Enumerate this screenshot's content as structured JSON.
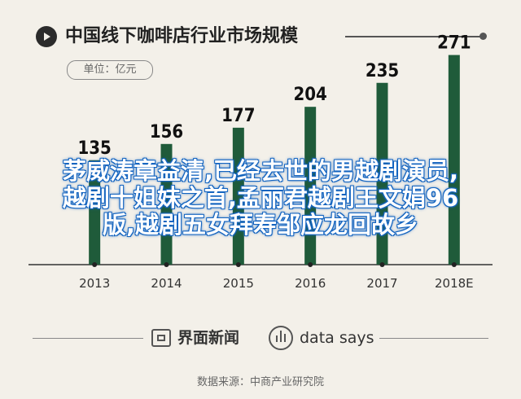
{
  "header": {
    "title": "中国线下咖啡店行业市场规模",
    "unit": "单位：亿元"
  },
  "chart_data": {
    "type": "bar",
    "categories": [
      "2013",
      "2014",
      "2015",
      "2016",
      "2017",
      "2018E"
    ],
    "values": [
      135,
      156,
      177,
      204,
      235,
      271
    ],
    "ylim": [
      0,
      300
    ],
    "color": "#1f5b3a"
  },
  "overlay": {
    "lines": [
      "茅威涛章益清,已经去世的男越剧演员,",
      "越剧十姐妹之首,孟丽君越剧王文娟96",
      "版,越剧五女拜寿邹应龙回故乡"
    ]
  },
  "footer": {
    "brand1": "界面新闻",
    "brand2": "data says",
    "source": "数据来源：中商产业研究院"
  }
}
